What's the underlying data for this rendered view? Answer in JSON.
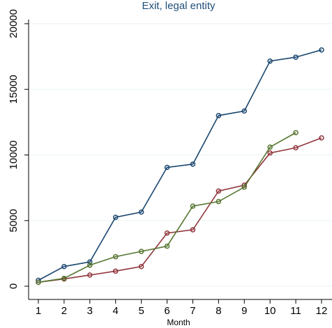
{
  "chart_data": {
    "type": "line",
    "title": "Exit, legal entity",
    "xlabel": "Month",
    "ylabel": "",
    "x": [
      1,
      2,
      3,
      4,
      5,
      6,
      7,
      8,
      9,
      10,
      11,
      12
    ],
    "xlim": [
      1,
      12
    ],
    "ylim": [
      0,
      20000
    ],
    "yticks": [
      0,
      5000,
      10000,
      15000,
      20000
    ],
    "grid": "horizontal",
    "legend": "none",
    "series": [
      {
        "color": "#1a476f",
        "values": [
          450,
          1500,
          1850,
          5250,
          5650,
          9050,
          9300,
          13000,
          13350,
          17150,
          17450,
          18000
        ]
      },
      {
        "color": "#90353b",
        "values": [
          300,
          550,
          850,
          1150,
          1500,
          4050,
          4300,
          7250,
          7700,
          10150,
          10550,
          11300
        ]
      },
      {
        "color": "#55752f",
        "values": [
          300,
          600,
          1600,
          2250,
          2650,
          3050,
          6100,
          6450,
          7550,
          10600,
          11700,
          null
        ]
      }
    ]
  }
}
